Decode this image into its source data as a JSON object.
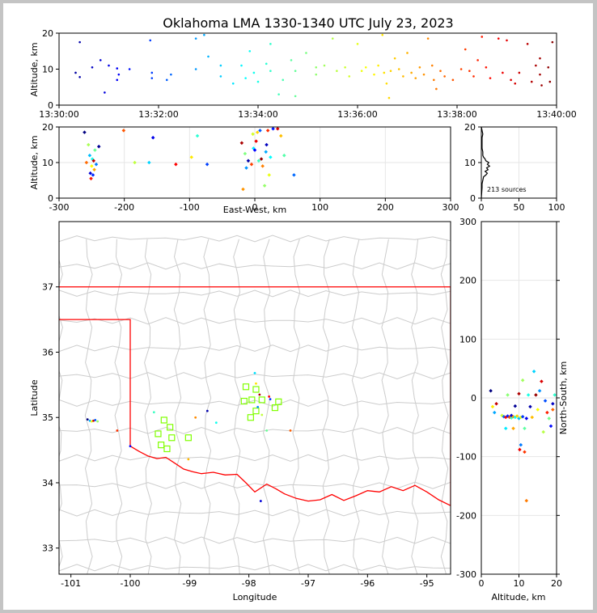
{
  "title": "Oklahoma LMA 1330-1340 UTC July 23, 2023",
  "colors": {
    "frame": "#000000",
    "background": "#c4c4c4",
    "border": "#ff0000",
    "county_lines": "#cccccc",
    "network_station": "#80ff00"
  },
  "chart_data": [
    {
      "id": "time-altitude",
      "type": "scatter",
      "ylabel": "Altitude, km",
      "xlabel": "",
      "xlim": [
        "13:30:00",
        "13:40:00"
      ],
      "ylim": [
        0,
        20
      ],
      "xticks": [
        "13:30:00",
        "13:32:00",
        "13:34:00",
        "13:36:00",
        "13:38:00",
        "13:40:00"
      ],
      "yticks": [
        "0",
        "10",
        "20"
      ],
      "color_scale": "time (blue to red)",
      "points": [
        {
          "t": "13:30:25",
          "z": 17.5
        },
        {
          "t": "13:30:20",
          "z": 9.0
        },
        {
          "t": "13:30:25",
          "z": 7.8
        },
        {
          "t": "13:30:40",
          "z": 10.5
        },
        {
          "t": "13:30:50",
          "z": 12.5
        },
        {
          "t": "13:31:00",
          "z": 11.0
        },
        {
          "t": "13:30:55",
          "z": 3.5
        },
        {
          "t": "13:31:10",
          "z": 10.2
        },
        {
          "t": "13:31:10",
          "z": 7.0
        },
        {
          "t": "13:31:12",
          "z": 8.5
        },
        {
          "t": "13:31:25",
          "z": 10.0
        },
        {
          "t": "13:31:50",
          "z": 18.0
        },
        {
          "t": "13:31:52",
          "z": 9.0
        },
        {
          "t": "13:31:52",
          "z": 7.5
        },
        {
          "t": "13:32:10",
          "z": 7.0
        },
        {
          "t": "13:32:15",
          "z": 8.5
        },
        {
          "t": "13:32:45",
          "z": 18.5
        },
        {
          "t": "13:32:45",
          "z": 10.0
        },
        {
          "t": "13:32:55",
          "z": 19.5
        },
        {
          "t": "13:33:00",
          "z": 13.5
        },
        {
          "t": "13:33:15",
          "z": 11.0
        },
        {
          "t": "13:33:15",
          "z": 8.0
        },
        {
          "t": "13:33:30",
          "z": 6.0
        },
        {
          "t": "13:33:40",
          "z": 11.0
        },
        {
          "t": "13:33:45",
          "z": 7.5
        },
        {
          "t": "13:33:50",
          "z": 15.0
        },
        {
          "t": "13:33:55",
          "z": 9.0
        },
        {
          "t": "13:34:00",
          "z": 6.5
        },
        {
          "t": "13:34:10",
          "z": 11.5
        },
        {
          "t": "13:34:15",
          "z": 17.0
        },
        {
          "t": "13:34:15",
          "z": 9.5
        },
        {
          "t": "13:34:25",
          "z": 3.0
        },
        {
          "t": "13:34:30",
          "z": 7.0
        },
        {
          "t": "13:34:40",
          "z": 12.5
        },
        {
          "t": "13:34:45",
          "z": 9.5
        },
        {
          "t": "13:34:45",
          "z": 2.5
        },
        {
          "t": "13:34:58",
          "z": 14.5
        },
        {
          "t": "13:35:10",
          "z": 10.5
        },
        {
          "t": "13:35:10",
          "z": 8.5
        },
        {
          "t": "13:35:20",
          "z": 11.0
        },
        {
          "t": "13:35:30",
          "z": 18.5
        },
        {
          "t": "13:35:35",
          "z": 9.5
        },
        {
          "t": "13:35:45",
          "z": 10.5
        },
        {
          "t": "13:35:50",
          "z": 8.0
        },
        {
          "t": "13:36:00",
          "z": 17.0
        },
        {
          "t": "13:36:05",
          "z": 9.5
        },
        {
          "t": "13:36:10",
          "z": 10.5
        },
        {
          "t": "13:36:20",
          "z": 8.5
        },
        {
          "t": "13:36:25",
          "z": 11.0
        },
        {
          "t": "13:36:30",
          "z": 19.5
        },
        {
          "t": "13:36:32",
          "z": 9.0
        },
        {
          "t": "13:36:35",
          "z": 6.0
        },
        {
          "t": "13:36:38",
          "z": 2.0
        },
        {
          "t": "13:36:40",
          "z": 9.5
        },
        {
          "t": "13:36:45",
          "z": 13.0
        },
        {
          "t": "13:36:50",
          "z": 10.0
        },
        {
          "t": "13:36:55",
          "z": 8.0
        },
        {
          "t": "13:37:00",
          "z": 14.5
        },
        {
          "t": "13:37:05",
          "z": 9.0
        },
        {
          "t": "13:37:10",
          "z": 7.5
        },
        {
          "t": "13:37:15",
          "z": 10.5
        },
        {
          "t": "13:37:20",
          "z": 8.5
        },
        {
          "t": "13:37:25",
          "z": 18.5
        },
        {
          "t": "13:37:30",
          "z": 11.0
        },
        {
          "t": "13:37:32",
          "z": 7.0
        },
        {
          "t": "13:37:35",
          "z": 4.5
        },
        {
          "t": "13:37:40",
          "z": 9.5
        },
        {
          "t": "13:37:45",
          "z": 8.0
        },
        {
          "t": "13:37:55",
          "z": 7.0
        },
        {
          "t": "13:38:05",
          "z": 10.0
        },
        {
          "t": "13:38:10",
          "z": 15.5
        },
        {
          "t": "13:38:15",
          "z": 9.5
        },
        {
          "t": "13:38:20",
          "z": 8.0
        },
        {
          "t": "13:38:25",
          "z": 12.5
        },
        {
          "t": "13:38:30",
          "z": 19.0
        },
        {
          "t": "13:38:35",
          "z": 10.5
        },
        {
          "t": "13:38:40",
          "z": 7.5
        },
        {
          "t": "13:38:50",
          "z": 18.5
        },
        {
          "t": "13:38:55",
          "z": 9.0
        },
        {
          "t": "13:39:00",
          "z": 18.0
        },
        {
          "t": "13:39:05",
          "z": 7.0
        },
        {
          "t": "13:39:10",
          "z": 6.0
        },
        {
          "t": "13:39:15",
          "z": 9.0
        },
        {
          "t": "13:39:25",
          "z": 17.0
        },
        {
          "t": "13:39:30",
          "z": 6.5
        },
        {
          "t": "13:39:35",
          "z": 11.0
        },
        {
          "t": "13:39:40",
          "z": 13.0
        },
        {
          "t": "13:39:40",
          "z": 8.5
        },
        {
          "t": "13:39:42",
          "z": 5.5
        },
        {
          "t": "13:39:50",
          "z": 10.5
        },
        {
          "t": "13:39:52",
          "z": 6.5
        },
        {
          "t": "13:39:55",
          "z": 17.5
        }
      ]
    },
    {
      "id": "eastwest-altitude",
      "type": "scatter",
      "xlabel": "East-West, km",
      "ylabel": "Altitude, km",
      "xlim": [
        -300,
        300
      ],
      "ylim": [
        0,
        20
      ],
      "xticks": [
        "-300",
        "-200",
        "-100",
        "0",
        "100",
        "200",
        "300"
      ],
      "yticks": [
        "0",
        "10",
        "20"
      ],
      "points": [
        {
          "x": -261,
          "z": 18.5
        },
        {
          "x": -258,
          "z": 10.0
        },
        {
          "x": -255,
          "z": 15.0
        },
        {
          "x": -253,
          "z": 12.0
        },
        {
          "x": -252,
          "z": 7.0
        },
        {
          "x": -251,
          "z": 5.5
        },
        {
          "x": -250,
          "z": 9.0
        },
        {
          "x": -249,
          "z": 11.0
        },
        {
          "x": -248,
          "z": 6.5
        },
        {
          "x": -247,
          "z": 10.5
        },
        {
          "x": -246,
          "z": 8.0
        },
        {
          "x": -245,
          "z": 13.5
        },
        {
          "x": -243,
          "z": 9.5
        },
        {
          "x": -239,
          "z": 14.5
        },
        {
          "x": -201,
          "z": 19.0
        },
        {
          "x": -184,
          "z": 10.0
        },
        {
          "x": -162,
          "z": 10.0
        },
        {
          "x": -156,
          "z": 17.0
        },
        {
          "x": -121,
          "z": 9.5
        },
        {
          "x": -97,
          "z": 11.5
        },
        {
          "x": -88,
          "z": 17.5
        },
        {
          "x": -73,
          "z": 9.5
        },
        {
          "x": -20,
          "z": 15.5
        },
        {
          "x": -18,
          "z": 2.5
        },
        {
          "x": -15,
          "z": 12.5
        },
        {
          "x": -13,
          "z": 8.5
        },
        {
          "x": -10,
          "z": 10.5
        },
        {
          "x": -5,
          "z": 9.5
        },
        {
          "x": -3,
          "z": 18.0
        },
        {
          "x": -2,
          "z": 14.0
        },
        {
          "x": 0,
          "z": 13.5
        },
        {
          "x": 2,
          "z": 16.0
        },
        {
          "x": 4,
          "z": 18.5
        },
        {
          "x": 6,
          "z": 10.5
        },
        {
          "x": 8,
          "z": 19.0
        },
        {
          "x": 10,
          "z": 11.0
        },
        {
          "x": 12,
          "z": 9.0
        },
        {
          "x": 15,
          "z": 3.5
        },
        {
          "x": 17,
          "z": 13.0
        },
        {
          "x": 18,
          "z": 15.0
        },
        {
          "x": 20,
          "z": 19.0
        },
        {
          "x": 22,
          "z": 6.5
        },
        {
          "x": 24,
          "z": 11.5
        },
        {
          "x": 28,
          "z": 19.5
        },
        {
          "x": 35,
          "z": 19.5
        },
        {
          "x": 40,
          "z": 17.5
        },
        {
          "x": 45,
          "z": 12.0
        },
        {
          "x": 60,
          "z": 6.5
        }
      ]
    },
    {
      "id": "altitude-histogram",
      "type": "line",
      "xlim": [
        0,
        100
      ],
      "ylim": [
        0,
        20
      ],
      "xticks": [
        "0",
        "50",
        "100"
      ],
      "yticks": [
        "0",
        "10",
        "20"
      ],
      "annotation": "213 sources",
      "profile": [
        {
          "z": 3,
          "count": 1
        },
        {
          "z": 4,
          "count": 1
        },
        {
          "z": 5,
          "count": 2
        },
        {
          "z": 6,
          "count": 3
        },
        {
          "z": 6.5,
          "count": 6
        },
        {
          "z": 7,
          "count": 8
        },
        {
          "z": 7.5,
          "count": 5
        },
        {
          "z": 8,
          "count": 9
        },
        {
          "z": 8.5,
          "count": 7
        },
        {
          "z": 9,
          "count": 11
        },
        {
          "z": 9.5,
          "count": 8
        },
        {
          "z": 10,
          "count": 10
        },
        {
          "z": 10.5,
          "count": 6
        },
        {
          "z": 11,
          "count": 5
        },
        {
          "z": 11.5,
          "count": 3
        },
        {
          "z": 12,
          "count": 2
        },
        {
          "z": 13,
          "count": 2
        },
        {
          "z": 14,
          "count": 1
        },
        {
          "z": 15,
          "count": 1
        },
        {
          "z": 17,
          "count": 1
        },
        {
          "z": 18,
          "count": 2
        },
        {
          "z": 19,
          "count": 1
        },
        {
          "z": 20,
          "count": 0
        }
      ]
    },
    {
      "id": "plan-view",
      "type": "scatter",
      "xlabel": "Longitude",
      "ylabel": "Latitude",
      "xlim": [
        -101.2,
        -94.6
      ],
      "ylim": [
        32.6,
        38.0
      ],
      "xticks": [
        "-101",
        "-100",
        "-99",
        "-98",
        "-97",
        "-96",
        "-95"
      ],
      "yticks": [
        "33",
        "34",
        "35",
        "36",
        "37"
      ],
      "stations": [
        {
          "lon": -98.05,
          "lat": 35.47
        },
        {
          "lon": -97.88,
          "lat": 35.43
        },
        {
          "lon": -98.08,
          "lat": 35.25
        },
        {
          "lon": -97.95,
          "lat": 35.27
        },
        {
          "lon": -97.78,
          "lat": 35.27
        },
        {
          "lon": -97.5,
          "lat": 35.24
        },
        {
          "lon": -97.56,
          "lat": 35.15
        },
        {
          "lon": -97.88,
          "lat": 35.1
        },
        {
          "lon": -97.97,
          "lat": 35.0
        },
        {
          "lon": -99.43,
          "lat": 34.96
        },
        {
          "lon": -99.33,
          "lat": 34.85
        },
        {
          "lon": -99.53,
          "lat": 34.75
        },
        {
          "lon": -99.3,
          "lat": 34.69
        },
        {
          "lon": -99.02,
          "lat": 34.69
        },
        {
          "lon": -99.48,
          "lat": 34.58
        },
        {
          "lon": -99.38,
          "lat": 34.52
        }
      ],
      "points": [
        {
          "lon": -100.72,
          "lat": 34.97
        },
        {
          "lon": -100.68,
          "lat": 34.95
        },
        {
          "lon": -100.65,
          "lat": 34.94
        },
        {
          "lon": -100.62,
          "lat": 34.95
        },
        {
          "lon": -100.59,
          "lat": 34.96
        },
        {
          "lon": -100.55,
          "lat": 34.94
        },
        {
          "lon": -100.22,
          "lat": 34.8
        },
        {
          "lon": -100.0,
          "lat": 34.56
        },
        {
          "lon": -99.6,
          "lat": 35.08
        },
        {
          "lon": -98.9,
          "lat": 35.0
        },
        {
          "lon": -98.7,
          "lat": 35.1
        },
        {
          "lon": -97.9,
          "lat": 35.68
        },
        {
          "lon": -97.88,
          "lat": 35.52
        },
        {
          "lon": -97.82,
          "lat": 35.35
        },
        {
          "lon": -97.85,
          "lat": 35.16
        },
        {
          "lon": -97.78,
          "lat": 35.04
        },
        {
          "lon": -97.66,
          "lat": 35.32
        },
        {
          "lon": -97.64,
          "lat": 35.28
        },
        {
          "lon": -97.7,
          "lat": 34.8
        },
        {
          "lon": -97.3,
          "lat": 34.8
        },
        {
          "lon": -97.8,
          "lat": 33.72
        },
        {
          "lon": -98.55,
          "lat": 34.92
        },
        {
          "lon": -99.02,
          "lat": 34.36
        }
      ]
    },
    {
      "id": "altitude-northsouth",
      "type": "scatter",
      "xlabel": "Altitude, km",
      "ylabel": "North-South, km",
      "xlim": [
        0,
        20
      ],
      "ylim": [
        -300,
        300
      ],
      "xticks": [
        "0",
        "10",
        "20"
      ],
      "yticks": [
        "-300",
        "-200",
        "-100",
        "0",
        "100",
        "200",
        "300"
      ],
      "points": [
        {
          "z": 2.5,
          "y": 12
        },
        {
          "z": 3,
          "y": -15
        },
        {
          "z": 3.5,
          "y": -25
        },
        {
          "z": 4,
          "y": -10
        },
        {
          "z": 5.5,
          "y": -30
        },
        {
          "z": 6,
          "y": -32
        },
        {
          "z": 6.5,
          "y": -33
        },
        {
          "z": 7,
          "y": 5
        },
        {
          "z": 7,
          "y": -31
        },
        {
          "z": 7.5,
          "y": -33
        },
        {
          "z": 8,
          "y": -34
        },
        {
          "z": 8,
          "y": -30
        },
        {
          "z": 8.5,
          "y": -32
        },
        {
          "z": 9,
          "y": -33
        },
        {
          "z": 9,
          "y": -14
        },
        {
          "z": 9.5,
          "y": -31
        },
        {
          "z": 10,
          "y": -35
        },
        {
          "z": 10,
          "y": 7
        },
        {
          "z": 10.5,
          "y": -33
        },
        {
          "z": 10.5,
          "y": -80
        },
        {
          "z": 10.2,
          "y": -88
        },
        {
          "z": 11,
          "y": 30
        },
        {
          "z": 11,
          "y": -32
        },
        {
          "z": 11.5,
          "y": -92
        },
        {
          "z": 11.5,
          "y": -52
        },
        {
          "z": 12,
          "y": -35
        },
        {
          "z": 12,
          "y": -175
        },
        {
          "z": 12.5,
          "y": 5
        },
        {
          "z": 13,
          "y": -15
        },
        {
          "z": 13.5,
          "y": -33
        },
        {
          "z": 14,
          "y": 45
        },
        {
          "z": 14.5,
          "y": 5
        },
        {
          "z": 15,
          "y": -20
        },
        {
          "z": 15.5,
          "y": 12
        },
        {
          "z": 16,
          "y": 28
        },
        {
          "z": 16.5,
          "y": -58
        },
        {
          "z": 17,
          "y": -5
        },
        {
          "z": 17.5,
          "y": -25
        },
        {
          "z": 18,
          "y": -35
        },
        {
          "z": 18.5,
          "y": -48
        },
        {
          "z": 19,
          "y": -20
        },
        {
          "z": 19.5,
          "y": 5
        },
        {
          "z": 19,
          "y": -10
        },
        {
          "z": 8.5,
          "y": -52
        },
        {
          "z": 6.5,
          "y": -52
        }
      ]
    }
  ]
}
